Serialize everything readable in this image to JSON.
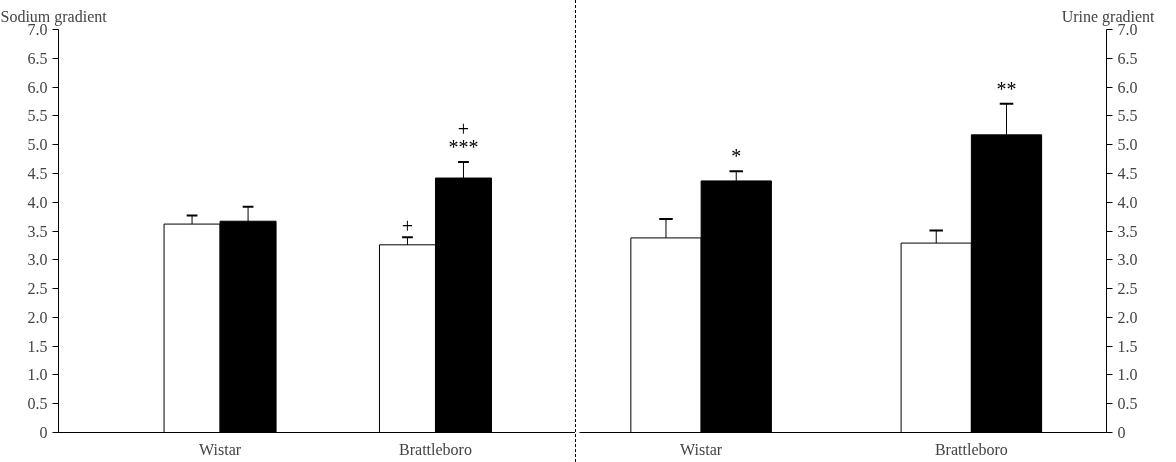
{
  "chart_data": [
    {
      "type": "bar",
      "title": "Sodium gradient",
      "categories": [
        "Wistar",
        "Brattleboro"
      ],
      "series": [
        {
          "color": "#ffffff",
          "values": [
            3.62,
            3.26
          ],
          "errors": [
            [
              3.62,
              3.77
            ],
            [
              3.26,
              3.39
            ]
          ]
        },
        {
          "color": "#000000",
          "values": [
            3.67,
            4.42
          ],
          "errors": [
            [
              3.67,
              3.92
            ],
            [
              4.42,
              4.7
            ]
          ]
        }
      ],
      "ylim": [
        0,
        7
      ],
      "yticks": [
        0,
        {
          "value": 0.5,
          "label": "0.5"
        },
        {
          "value": 1,
          "label": "1.0"
        },
        {
          "value": 1.5,
          "label": "1.5"
        },
        {
          "value": 2,
          "label": "2.0"
        },
        {
          "value": 2.5,
          "label": "2.5"
        },
        {
          "value": 3,
          "label": "3.0"
        },
        {
          "value": 3.5,
          "label": "3.5"
        },
        {
          "value": 4,
          "label": "4.0"
        },
        {
          "value": 4.5,
          "label": "4.5"
        },
        {
          "value": 5,
          "label": "5.0"
        },
        {
          "value": 5.5,
          "label": "5.5"
        },
        {
          "value": 6,
          "label": "6.0"
        },
        {
          "value": 6.5,
          "label": "6.5"
        },
        {
          "value": 7,
          "label": "7.0"
        }
      ],
      "annotations": [
        {
          "text": "+",
          "x": "Brattleboro",
          "y": 3.26
        },
        {
          "text": "***",
          "x": "Brattleboro",
          "y": 4.42
        },
        {
          "text": "+",
          "x": "Brattleboro",
          "y": 4.42
        }
      ],
      "grid": false
    },
    {
      "type": "bar",
      "title": "Urine gradient",
      "categories": [
        "Wistar",
        "Brattleboro"
      ],
      "series": [
        {
          "color": "#ffffff",
          "values": [
            3.38,
            3.29
          ],
          "errors": [
            [
              3.38,
              3.71
            ],
            [
              3.29,
              3.51
            ]
          ]
        },
        {
          "color": "#000000",
          "values": [
            4.37,
            5.17
          ],
          "errors": [
            [
              4.37,
              4.54
            ],
            [
              5.17,
              5.71
            ]
          ]
        }
      ],
      "ylim": [
        0,
        7
      ],
      "yticks": [
        0,
        {
          "value": 0.5,
          "label": "0.5"
        },
        {
          "value": 1,
          "label": "1.0"
        },
        {
          "value": 1.5,
          "label": "1.5"
        },
        {
          "value": 2,
          "label": "2.0"
        },
        {
          "value": 2.5,
          "label": "2.5"
        },
        {
          "value": 3,
          "label": "3.0"
        },
        {
          "value": 3.5,
          "label": "3.5"
        },
        {
          "value": 4,
          "label": "4.0"
        },
        {
          "value": 4.5,
          "label": "4.5"
        },
        {
          "value": 5,
          "label": "5.0"
        },
        {
          "value": 5.5,
          "label": "5.5"
        },
        {
          "value": 6,
          "label": "6.0"
        },
        {
          "value": 6.5,
          "label": "6.5"
        },
        {
          "value": 7,
          "label": "7.0"
        }
      ],
      "annotations": [
        {
          "text": "*",
          "x": "Wistar",
          "y": 4.37
        },
        {
          "text": "**",
          "x": "Brattleboro",
          "y": 5.17
        }
      ],
      "grid": false
    }
  ]
}
